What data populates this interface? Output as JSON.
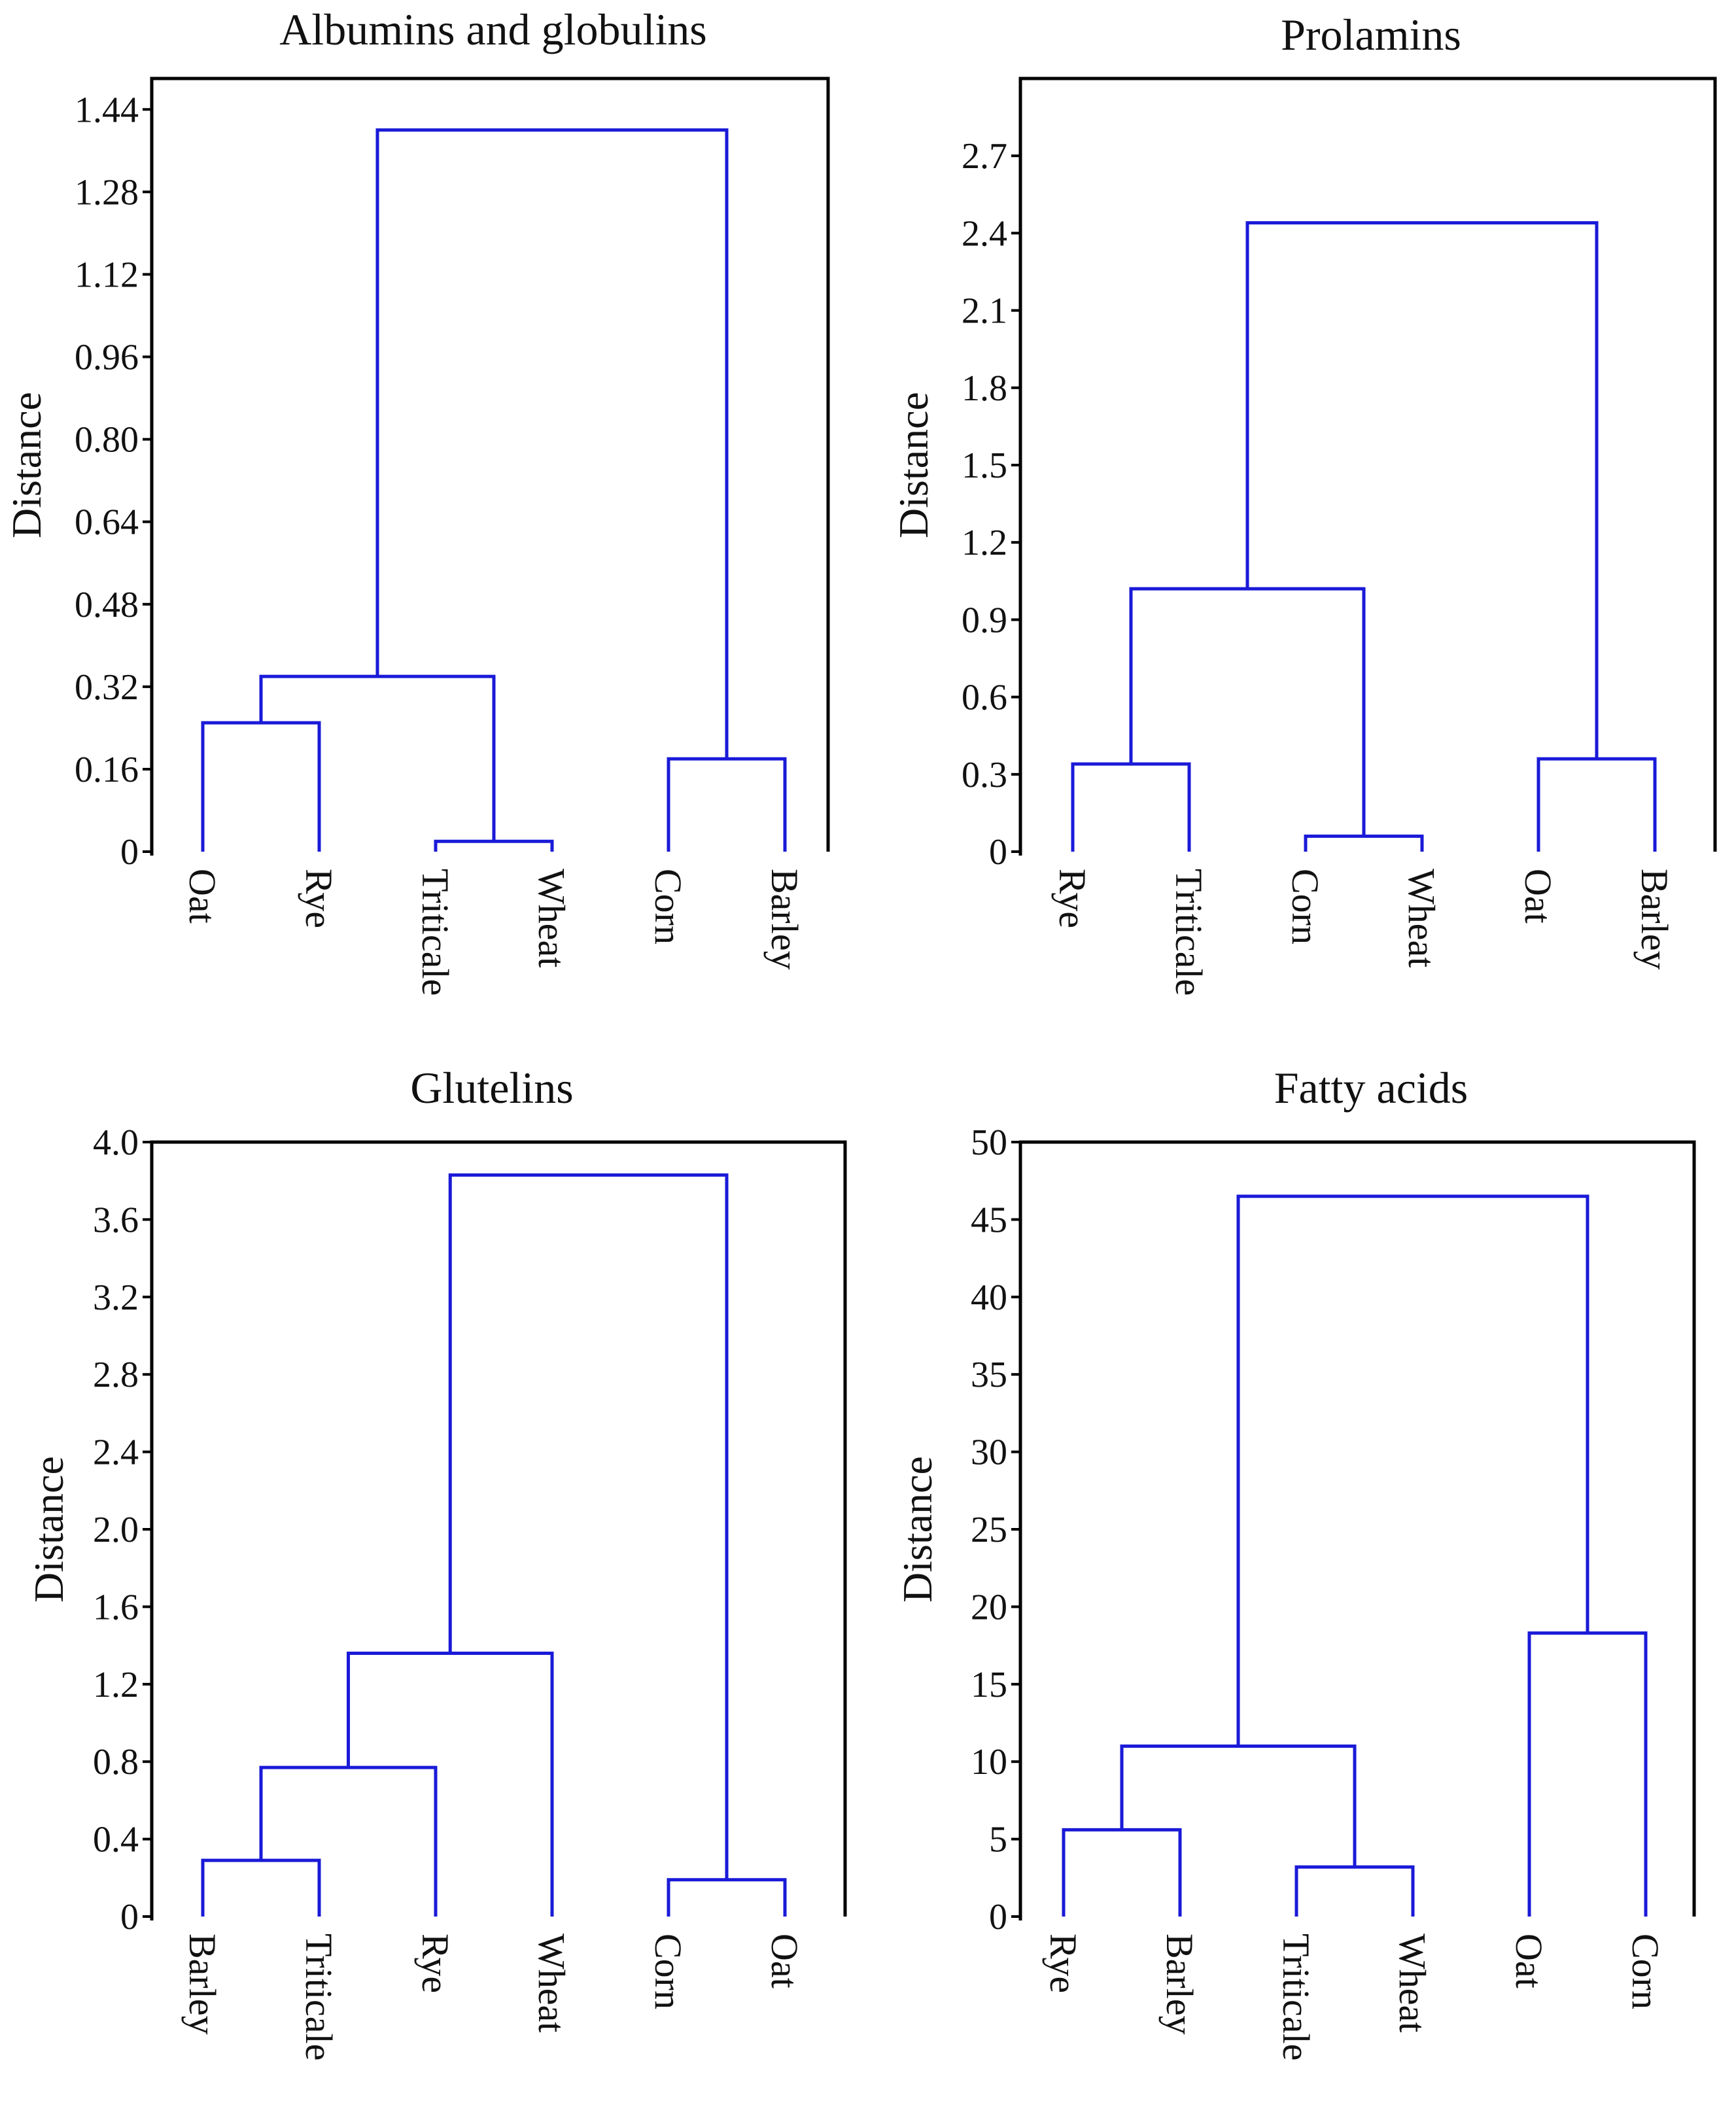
{
  "figure": {
    "colors": {
      "link": "#1a1ad8",
      "axis": "#000000",
      "text": "#111111"
    }
  },
  "chart_data": [
    {
      "type": "dendrogram",
      "title": "Albumins and globulins",
      "ylabel": "Distance",
      "ylim": [
        0,
        1.5
      ],
      "yticks": [
        0,
        0.16,
        0.32,
        0.48,
        0.64,
        0.8,
        0.96,
        1.12,
        1.28,
        1.44
      ],
      "ytick_labels": [
        "0",
        "0.16",
        "0.32",
        "0.48",
        "0.64",
        "0.80",
        "0.96",
        "1.12",
        "1.28",
        "1.44"
      ],
      "leaves": [
        "Oat",
        "Rye",
        "Triticale",
        "Wheat",
        "Corn",
        "Barley"
      ],
      "merges": [
        {
          "left": "Oat",
          "right": "Rye",
          "height": 0.25,
          "label": "C1"
        },
        {
          "left": "Triticale",
          "right": "Wheat",
          "height": 0.02,
          "label": "C2"
        },
        {
          "left": "C1",
          "right": "C2",
          "height": 0.34,
          "label": "C3"
        },
        {
          "left": "Corn",
          "right": "Barley",
          "height": 0.18,
          "label": "C4"
        },
        {
          "left": "C3",
          "right": "C4",
          "height": 1.4,
          "label": "C5"
        }
      ]
    },
    {
      "type": "dendrogram",
      "title": "Prolamins",
      "ylabel": "Distance",
      "ylim": [
        0,
        3.0
      ],
      "yticks": [
        0,
        0.3,
        0.6,
        0.9,
        1.2,
        1.5,
        1.8,
        2.1,
        2.4,
        2.7
      ],
      "ytick_labels": [
        "0",
        "0.3",
        "0.6",
        "0.9",
        "1.2",
        "1.5",
        "1.8",
        "2.1",
        "2.4",
        "2.7"
      ],
      "leaves": [
        "Rye",
        "Triticale",
        "Corn",
        "Wheat",
        "Oat",
        "Barley"
      ],
      "merges": [
        {
          "left": "Rye",
          "right": "Triticale",
          "height": 0.34,
          "label": "C1"
        },
        {
          "left": "Corn",
          "right": "Wheat",
          "height": 0.06,
          "label": "C2"
        },
        {
          "left": "C1",
          "right": "C2",
          "height": 1.02,
          "label": "C3"
        },
        {
          "left": "Oat",
          "right": "Barley",
          "height": 0.36,
          "label": "C4"
        },
        {
          "left": "C3",
          "right": "C4",
          "height": 2.44,
          "label": "C5"
        }
      ]
    },
    {
      "type": "dendrogram",
      "title": "Glutelins",
      "ylabel": "Distance",
      "ylim": [
        0,
        4.0
      ],
      "yticks": [
        0,
        0.4,
        0.8,
        1.2,
        1.6,
        2.0,
        2.4,
        2.8,
        3.2,
        3.6,
        4.0
      ],
      "ytick_labels": [
        "0",
        "0.4",
        "0.8",
        "1.2",
        "1.6",
        "2.0",
        "2.4",
        "2.8",
        "3.2",
        "3.6",
        "4.0"
      ],
      "leaves": [
        "Barley",
        "Triticale",
        "Rye",
        "Wheat",
        "Corn",
        "Oat"
      ],
      "merges": [
        {
          "left": "Barley",
          "right": "Triticale",
          "height": 0.29,
          "label": "C1"
        },
        {
          "left": "C1",
          "right": "Rye",
          "height": 0.77,
          "label": "C2"
        },
        {
          "left": "C2",
          "right": "Wheat",
          "height": 1.36,
          "label": "C3"
        },
        {
          "left": "Corn",
          "right": "Oat",
          "height": 0.19,
          "label": "C4"
        },
        {
          "left": "C3",
          "right": "C4",
          "height": 3.83,
          "label": "C5"
        }
      ]
    },
    {
      "type": "dendrogram",
      "title": "Fatty acids",
      "ylabel": "Distance",
      "ylim": [
        0,
        50
      ],
      "yticks": [
        0,
        5,
        10,
        15,
        20,
        25,
        30,
        35,
        40,
        45,
        50
      ],
      "ytick_labels": [
        "0",
        "5",
        "10",
        "15",
        "20",
        "25",
        "30",
        "35",
        "40",
        "45",
        "50"
      ],
      "leaves": [
        "Rye",
        "Barley",
        "Triticale",
        "Wheat",
        "Oat",
        "Corn"
      ],
      "merges": [
        {
          "left": "Rye",
          "right": "Barley",
          "height": 5.6,
          "label": "C1"
        },
        {
          "left": "Triticale",
          "right": "Wheat",
          "height": 3.2,
          "label": "C2"
        },
        {
          "left": "C1",
          "right": "C2",
          "height": 11.0,
          "label": "C3"
        },
        {
          "left": "Oat",
          "right": "Corn",
          "height": 18.3,
          "label": "C4"
        },
        {
          "left": "C3",
          "right": "C4",
          "height": 46.5,
          "label": "C5"
        }
      ]
    }
  ]
}
